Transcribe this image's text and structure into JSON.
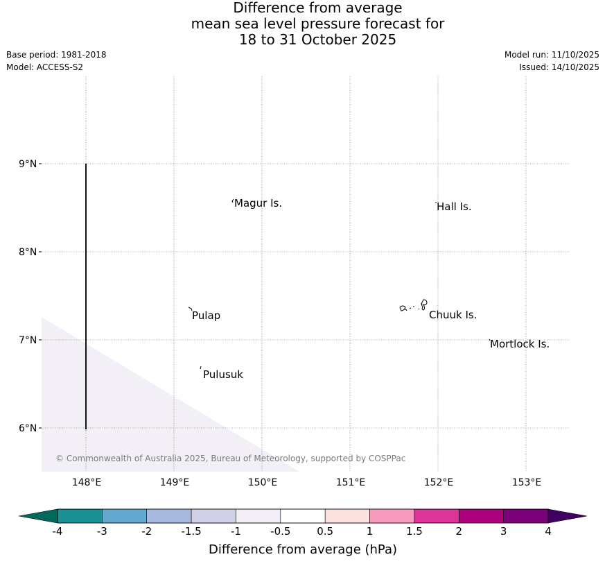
{
  "title": {
    "line1": "Difference from average",
    "line2": "mean sea level pressure forecast for",
    "line3": "18 to 31 October 2025"
  },
  "meta": {
    "base_period": "Base period: 1981-2018",
    "model": "Model: ACCESS-S2",
    "model_run": "Model run: 11/10/2025",
    "issued": "Issued: 14/10/2025"
  },
  "map": {
    "lat_labels": [
      "9°N",
      "8°N",
      "7°N",
      "6°N"
    ],
    "lon_labels": [
      "148°E",
      "149°E",
      "150°E",
      "151°E",
      "152°E",
      "153°E"
    ],
    "places": [
      {
        "name": "Magur Is."
      },
      {
        "name": "Hall Is."
      },
      {
        "name": "Pulap"
      },
      {
        "name": "Chuuk Is."
      },
      {
        "name": "Mortlock Is."
      },
      {
        "name": "Pulusuk"
      }
    ],
    "copyright": "© Commonwealth of Australia 2025, Bureau of Meteorology, supported by COSPPac",
    "shaded_region_color": "#f3eff6"
  },
  "colorbar": {
    "label": "Difference from average (hPa)",
    "ticks": [
      "-4",
      "-3",
      "-2",
      "-1.5",
      "-1",
      "-0.5",
      "0.5",
      "1",
      "1.5",
      "2",
      "3",
      "4"
    ],
    "low_extend_color": "#00695c",
    "high_extend_color": "#3f0060",
    "colors": [
      "#1a8f94",
      "#66a9d0",
      "#a8b9dd",
      "#d0d0e6",
      "#f2eef6",
      "#ffffff",
      "#fde0e0",
      "#f79cbc",
      "#dd3497",
      "#ae017e",
      "#7a0177"
    ]
  }
}
